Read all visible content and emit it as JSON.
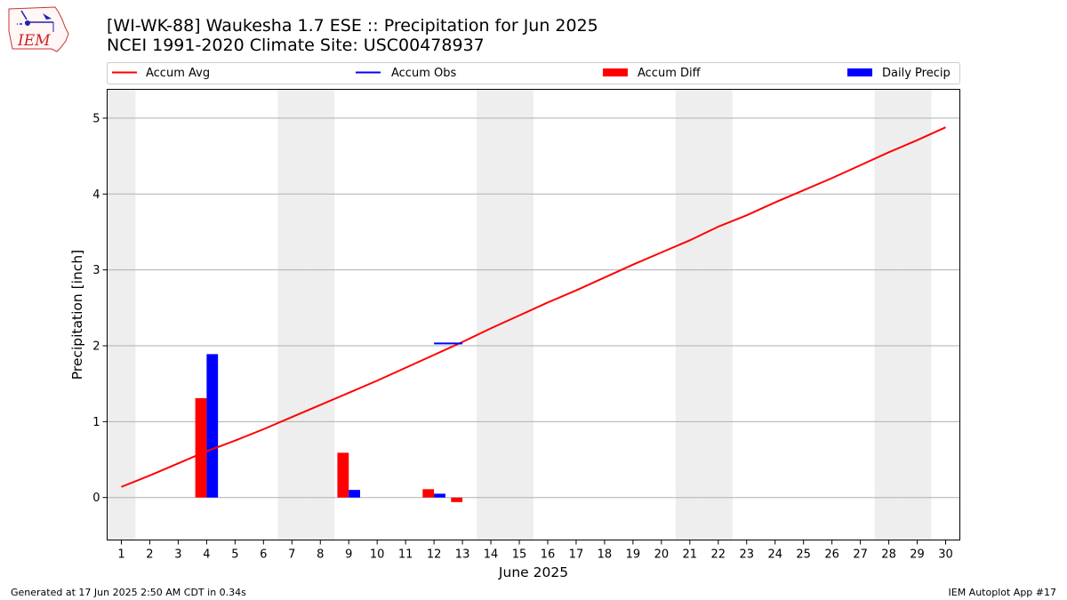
{
  "header": {
    "title_line1": "[WI-WK-88] Waukesha 1.7 ESE :: Precipitation for Jun 2025",
    "title_line2": "NCEI 1991-2020 Climate Site: USC00478937",
    "logo_text": "IEM"
  },
  "footer": {
    "left": "Generated at 17 Jun 2025 2:50 AM CDT in 0.34s",
    "right": "IEM Autoplot App #17"
  },
  "colors": {
    "accum_avg": "#ff0000",
    "accum_obs": "#0000ff",
    "accum_diff": "#ff0000",
    "daily_precip": "#0000ff",
    "weekend_band": "#eeeeee",
    "grid": "#b0b0b0"
  },
  "chart_data": {
    "type": "bar",
    "title": "[WI-WK-88] Waukesha 1.7 ESE :: Precipitation for Jun 2025",
    "xlabel": "June 2025",
    "ylabel": "Precipitation [inch]",
    "xlim": [
      0.5,
      30.5
    ],
    "ylim": [
      -0.56,
      5.38
    ],
    "x_ticks": [
      1,
      2,
      3,
      4,
      5,
      6,
      7,
      8,
      9,
      10,
      11,
      12,
      13,
      14,
      15,
      16,
      17,
      18,
      19,
      20,
      21,
      22,
      23,
      24,
      25,
      26,
      27,
      28,
      29,
      30
    ],
    "y_ticks": [
      0,
      1,
      2,
      3,
      4,
      5
    ],
    "grid": "horizontal",
    "legend_position": "top",
    "weekend_days": [
      1,
      7,
      8,
      14,
      15,
      21,
      22,
      28,
      29
    ],
    "legend": [
      "Accum Avg",
      "Accum Obs",
      "Accum Diff",
      "Daily Precip"
    ],
    "series": [
      {
        "name": "Accum Avg",
        "kind": "line",
        "x": [
          1,
          2,
          3,
          4,
          5,
          6,
          7,
          8,
          9,
          10,
          11,
          12,
          13,
          14,
          15,
          16,
          17,
          18,
          19,
          20,
          21,
          22,
          23,
          24,
          25,
          26,
          27,
          28,
          29,
          30
        ],
        "values": [
          0.14,
          0.29,
          0.45,
          0.61,
          0.75,
          0.9,
          1.06,
          1.22,
          1.38,
          1.54,
          1.71,
          1.88,
          2.05,
          2.23,
          2.4,
          2.57,
          2.73,
          2.9,
          3.07,
          3.23,
          3.39,
          3.57,
          3.72,
          3.89,
          4.05,
          4.21,
          4.38,
          4.55,
          4.71,
          4.88
        ]
      },
      {
        "name": "Accum Obs",
        "kind": "line",
        "x": [
          12,
          13
        ],
        "values": [
          2.03,
          2.03
        ]
      },
      {
        "name": "Accum Diff",
        "kind": "bar",
        "x": [
          4,
          9,
          12,
          13
        ],
        "values": [
          1.31,
          0.59,
          0.11,
          -0.06
        ]
      },
      {
        "name": "Daily Precip",
        "kind": "bar",
        "x": [
          4,
          9,
          12
        ],
        "values": [
          1.89,
          0.1,
          0.05
        ]
      }
    ]
  }
}
